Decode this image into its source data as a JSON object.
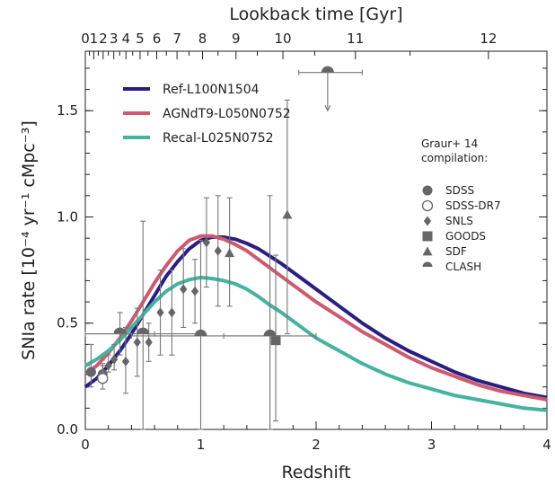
{
  "chart_data": {
    "type": "line",
    "xlabel": "Redshift",
    "ylabel": "SNIa rate [10⁻⁴ yr⁻¹ cMpc⁻³]",
    "top_xlabel": "Lookback time [Gyr]",
    "xlim": [
      0,
      4
    ],
    "ylim": [
      0,
      1.78
    ],
    "x_ticks": [
      {
        "v": 0,
        "label": "0"
      },
      {
        "v": 1,
        "label": "1"
      },
      {
        "v": 2,
        "label": "2"
      },
      {
        "v": 3,
        "label": "3"
      },
      {
        "v": 4,
        "label": "4"
      }
    ],
    "y_ticks": [
      {
        "v": 0,
        "label": "0.0"
      },
      {
        "v": 0.5,
        "label": "0.5"
      },
      {
        "v": 1.0,
        "label": "1.0"
      },
      {
        "v": 1.5,
        "label": "1.5"
      }
    ],
    "top_ticks": [
      {
        "t": 0,
        "label": "0"
      },
      {
        "t": 1,
        "label": "1"
      },
      {
        "t": 2,
        "label": "2"
      },
      {
        "t": 3,
        "label": "3"
      },
      {
        "t": 4,
        "label": "4"
      },
      {
        "t": 5,
        "label": "5"
      },
      {
        "t": 6,
        "label": "6"
      },
      {
        "t": 7,
        "label": "7"
      },
      {
        "t": 8,
        "label": "8"
      },
      {
        "t": 9,
        "label": "9"
      },
      {
        "t": 10,
        "label": "10"
      },
      {
        "t": 11,
        "label": "11"
      },
      {
        "t": 12,
        "label": "12"
      }
    ],
    "series": [
      {
        "name": "Ref-L100N1504",
        "color": "#2a1f80",
        "x": [
          0,
          0.1,
          0.2,
          0.3,
          0.4,
          0.5,
          0.6,
          0.7,
          0.8,
          0.9,
          1.0,
          1.1,
          1.2,
          1.3,
          1.4,
          1.5,
          1.6,
          1.7,
          1.8,
          1.9,
          2.0,
          2.2,
          2.4,
          2.6,
          2.8,
          3.0,
          3.2,
          3.4,
          3.6,
          3.8,
          4.0
        ],
        "y": [
          0.2,
          0.24,
          0.3,
          0.37,
          0.45,
          0.54,
          0.63,
          0.72,
          0.79,
          0.85,
          0.89,
          0.905,
          0.905,
          0.895,
          0.875,
          0.85,
          0.815,
          0.78,
          0.74,
          0.7,
          0.66,
          0.58,
          0.5,
          0.43,
          0.37,
          0.32,
          0.27,
          0.23,
          0.2,
          0.17,
          0.15
        ]
      },
      {
        "name": "AGNdT9-L050N0752",
        "color": "#cc5a70",
        "x": [
          0,
          0.1,
          0.2,
          0.3,
          0.4,
          0.5,
          0.6,
          0.7,
          0.8,
          0.9,
          1.0,
          1.1,
          1.2,
          1.3,
          1.4,
          1.5,
          1.6,
          1.7,
          1.8,
          1.9,
          2.0,
          2.2,
          2.4,
          2.6,
          2.8,
          3.0,
          3.2,
          3.4,
          3.6,
          3.8,
          4.0
        ],
        "y": [
          0.26,
          0.3,
          0.36,
          0.43,
          0.51,
          0.6,
          0.69,
          0.77,
          0.84,
          0.89,
          0.91,
          0.91,
          0.895,
          0.87,
          0.84,
          0.8,
          0.76,
          0.72,
          0.68,
          0.64,
          0.6,
          0.53,
          0.46,
          0.4,
          0.34,
          0.29,
          0.25,
          0.21,
          0.18,
          0.16,
          0.14
        ]
      },
      {
        "name": "Recal-L025N0752",
        "color": "#45b3a0",
        "x": [
          0,
          0.1,
          0.2,
          0.3,
          0.4,
          0.5,
          0.6,
          0.7,
          0.8,
          0.9,
          1.0,
          1.1,
          1.2,
          1.3,
          1.4,
          1.5,
          1.6,
          1.7,
          1.8,
          1.9,
          2.0,
          2.2,
          2.4,
          2.6,
          2.8,
          3.0,
          3.2,
          3.4,
          3.6,
          3.8,
          4.0
        ],
        "y": [
          0.3,
          0.33,
          0.37,
          0.42,
          0.48,
          0.54,
          0.6,
          0.65,
          0.685,
          0.705,
          0.715,
          0.71,
          0.7,
          0.685,
          0.66,
          0.625,
          0.585,
          0.55,
          0.51,
          0.47,
          0.43,
          0.37,
          0.31,
          0.26,
          0.22,
          0.19,
          0.16,
          0.14,
          0.12,
          0.1,
          0.09
        ]
      }
    ],
    "observations": [
      {
        "survey": "SDSS",
        "marker": "circle",
        "x": 0.05,
        "y": 0.27,
        "ylo": 0.2,
        "yhi": 0.4
      },
      {
        "survey": "SDSS",
        "marker": "circle",
        "x": 0.15,
        "y": 0.26,
        "ylo": 0.22,
        "yhi": 0.31
      },
      {
        "survey": "SDSS-DR7",
        "marker": "open-circle",
        "x": 0.15,
        "y": 0.24,
        "ylo": 0.19,
        "yhi": 0.3
      },
      {
        "survey": "SNLS",
        "marker": "diamond",
        "x": 0.2,
        "y": 0.3,
        "ylo": 0.27,
        "yhi": 0.35
      },
      {
        "survey": "SNLS",
        "marker": "diamond",
        "x": 0.25,
        "y": 0.33,
        "ylo": 0.28,
        "yhi": 0.4
      },
      {
        "survey": "SNLS",
        "marker": "diamond",
        "x": 0.35,
        "y": 0.32,
        "ylo": 0.17,
        "yhi": 0.48
      },
      {
        "survey": "SNLS",
        "marker": "diamond",
        "x": 0.45,
        "y": 0.41,
        "ylo": 0.25,
        "yhi": 0.57
      },
      {
        "survey": "SNLS",
        "marker": "diamond",
        "x": 0.55,
        "y": 0.41,
        "ylo": 0.32,
        "yhi": 0.5
      },
      {
        "survey": "SNLS",
        "marker": "diamond",
        "x": 0.65,
        "y": 0.55,
        "ylo": 0.35,
        "yhi": 0.75
      },
      {
        "survey": "SNLS",
        "marker": "diamond",
        "x": 0.75,
        "y": 0.55,
        "ylo": 0.35,
        "yhi": 0.75
      },
      {
        "survey": "SNLS",
        "marker": "diamond",
        "x": 0.85,
        "y": 0.66,
        "ylo": 0.48,
        "yhi": 0.85
      },
      {
        "survey": "SNLS",
        "marker": "diamond",
        "x": 0.95,
        "y": 0.65,
        "ylo": 0.5,
        "yhi": 0.8
      },
      {
        "survey": "SNLS",
        "marker": "diamond",
        "x": 1.05,
        "y": 0.88,
        "ylo": 0.67,
        "yhi": 1.09
      },
      {
        "survey": "SNLS",
        "marker": "diamond",
        "x": 1.15,
        "y": 0.84,
        "ylo": 0.58,
        "yhi": 1.1
      },
      {
        "survey": "GOODS",
        "marker": "square",
        "x": 1.65,
        "y": 0.42,
        "ylo": 0.04,
        "yhi": 0.82
      },
      {
        "survey": "SDF",
        "marker": "triangle",
        "x": 1.25,
        "y": 0.83,
        "ylo": 0.58,
        "yhi": 1.09
      },
      {
        "survey": "SDF",
        "marker": "triangle",
        "x": 1.75,
        "y": 1.01,
        "ylo": 0.45,
        "yhi": 1.55
      },
      {
        "survey": "CLASH",
        "marker": "half-circle",
        "x": 0.3,
        "y": 0.45,
        "ylo": 0.35,
        "yhi": 0.55,
        "xlo": 0.0,
        "xhi": 0.6
      },
      {
        "survey": "CLASH",
        "marker": "half-circle",
        "x": 0.5,
        "y": 0.45,
        "ylo": 0.0,
        "yhi": 0.98,
        "xlo": 0.0,
        "xhi": 1.0
      },
      {
        "survey": "CLASH",
        "marker": "half-circle",
        "x": 1.0,
        "y": 0.44,
        "ylo": 0.0,
        "yhi": 0.89,
        "xlo": 0.4,
        "xhi": 1.6
      },
      {
        "survey": "CLASH",
        "marker": "half-circle",
        "x": 1.6,
        "y": 0.44,
        "ylo": 0.0,
        "yhi": 1.1,
        "xlo": 1.2,
        "xhi": 2.0
      },
      {
        "survey": "CLASH",
        "marker": "half-circle",
        "x": 2.1,
        "y": 1.68,
        "xlo": 1.85,
        "xhi": 2.4,
        "upper_limit": true,
        "arrow_to": 1.5
      }
    ],
    "legend_header": [
      "Graur+ 14",
      "compilation:"
    ],
    "legend_markers": [
      {
        "marker": "circle",
        "label": "SDSS"
      },
      {
        "marker": "open-circle",
        "label": "SDSS-DR7"
      },
      {
        "marker": "diamond",
        "label": "SNLS"
      },
      {
        "marker": "square",
        "label": "GOODS"
      },
      {
        "marker": "triangle",
        "label": "SDF"
      },
      {
        "marker": "half-circle",
        "label": "CLASH"
      }
    ],
    "legend_placement": "top-left (simulations), right (observations)",
    "grid": false,
    "marker_color": "#666666"
  }
}
